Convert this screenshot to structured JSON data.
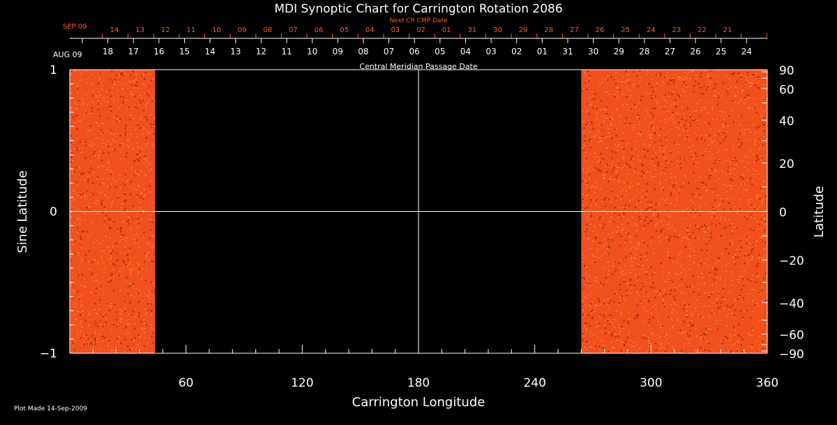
{
  "colors": {
    "background": "#000000",
    "axis": "#ffffff",
    "next_cr_dates": "#ff5a28",
    "map_base": "#f2501f",
    "map_bright": "#ffcf3a",
    "map_dark": "#5a0a08"
  },
  "chart_data": {
    "type": "heatmap",
    "title": "MDI Synoptic Chart for Carrington Rotation 2086",
    "xlabel": "Carrington Longitude",
    "ylabel_left": "Sine Latitude",
    "ylabel_right": "Latitude",
    "xlim": [
      0,
      360
    ],
    "ylim": [
      -1,
      1
    ],
    "x_ticks": [
      60,
      120,
      180,
      240,
      300,
      360
    ],
    "y_ticks_left": [
      -1,
      0,
      1
    ],
    "y_ticks_left_labels": [
      "−1",
      "0",
      "1"
    ],
    "y_ticks_right_deg": [
      90,
      60,
      40,
      20,
      0,
      -20,
      -40,
      -60,
      -90
    ],
    "y_ticks_right_labels": [
      "90",
      "60",
      "40",
      "20",
      "0",
      "−20",
      "−40",
      "−60",
      "−90"
    ],
    "grid_lines": {
      "vertical_at_longitude": 180,
      "horizontal_at_sine_latitude": 0
    },
    "data_coverage_longitude_ranges": [
      [
        0,
        44
      ],
      [
        264,
        360
      ]
    ],
    "top_axis_label": "Central Meridian Passage Date",
    "top_axis_dates": {
      "start_label": "AUG 09",
      "labels": [
        "18",
        "17",
        "16",
        "15",
        "14",
        "13",
        "12",
        "11",
        "10",
        "09",
        "08",
        "07",
        "06",
        "05",
        "04",
        "03",
        "02",
        "01",
        "31",
        "30",
        "29",
        "28",
        "27",
        "26",
        "25",
        "24"
      ]
    },
    "next_cr_axis": {
      "title": "Next CR CMP Date",
      "start_label": "SEP 09",
      "labels": [
        "14",
        "13",
        "12",
        "11",
        "10",
        "09",
        "08",
        "07",
        "06",
        "05",
        "04",
        "03",
        "02",
        "01",
        "31",
        "30",
        "29",
        "28",
        "27",
        "26",
        "25",
        "24",
        "23",
        "22",
        "21"
      ]
    }
  },
  "footer": {
    "plot_made": "Plot Made 14-Sep-2009"
  }
}
